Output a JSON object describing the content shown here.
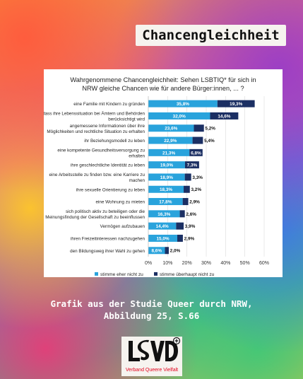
{
  "header": {
    "title": "Chancengleichheit"
  },
  "chart_data": {
    "type": "bar",
    "stacked": true,
    "orientation": "horizontal",
    "title_lines": [
      "Wahrgenommene Chancengleichheit: Sehen LSBTIQ* für sich in",
      "NRW gleiche Chancen wie für andere Bürger:innen, ... ?"
    ],
    "categories": [
      [
        "eine Familie mit Kindern zu gründen"
      ],
      [
        "dass ihre Lebenssituation bei Ämtern und Behörden",
        "berücksichtigt wird"
      ],
      [
        "angemessene Informationen über ihre",
        "Möglichkeiten und rechtliche Situation zu erhalten"
      ],
      [
        "ihr Beziehungsmodell zu leben"
      ],
      [
        "eine kompetente Gesundheitsversorgung zu",
        "erhalten"
      ],
      [
        "ihre geschlechtliche Identität zu leben"
      ],
      [
        "eine Arbeitsstelle zu finden bzw. eine Karriere zu",
        "machen"
      ],
      [
        "ihre sexuelle Orientierung zu leben"
      ],
      [
        "eine Wohnung zu mieten"
      ],
      [
        "sich politisch aktiv zu beteiligen oder die",
        "Meinungsfindung der Gesellschaft zu beeinflussen"
      ],
      [
        "Vermögen aufzubauen"
      ],
      [
        "ihren Freizeitinteressen nachzugehen"
      ],
      [
        "den Bildungsweg ihrer Wahl zu gehen"
      ]
    ],
    "series": [
      {
        "name": "stimme eher nicht zu",
        "color": "#29a3dc",
        "values": [
          35.8,
          32.0,
          23.6,
          22.9,
          21.3,
          19.0,
          18.9,
          18.3,
          17.8,
          16.3,
          14.4,
          15.0,
          8.6
        ],
        "labels": [
          "35,8%",
          "32,0%",
          "23,6%",
          "22,9%",
          "21,3%",
          "19,0%",
          "18,9%",
          "18,3%",
          "17,8%",
          "16,3%",
          "14,4%",
          "15,0%",
          "8,6%"
        ]
      },
      {
        "name": "stimme überhaupt nicht zu",
        "color": "#1b2f63",
        "values": [
          19.3,
          14.6,
          5.2,
          5.4,
          6.8,
          7.3,
          3.3,
          3.2,
          2.9,
          2.6,
          3.9,
          2.9,
          2.0
        ],
        "labels": [
          "19,3%",
          "14,6%",
          "5,2%",
          "5,4%",
          "6,8%",
          "7,3%",
          "3,3%",
          "3,2%",
          "2,9%",
          "2,6%",
          "3,9%",
          "2,9%",
          "2,0%"
        ]
      }
    ],
    "xlim": [
      0,
      60
    ],
    "xticks": [
      "0%",
      "10%",
      "20%",
      "30%",
      "40%",
      "50%",
      "60%"
    ],
    "xlabel": "",
    "ylabel": "",
    "grid": true,
    "legend_position": "bottom"
  },
  "caption": {
    "line1": "Grafik aus der Studie Queer durch NRW,",
    "line2": "Abbildung 25, S.66"
  },
  "logo": {
    "mark": "LSVD",
    "text": "Verband Queere Vielfalt",
    "accent_color": "#e3001b"
  }
}
